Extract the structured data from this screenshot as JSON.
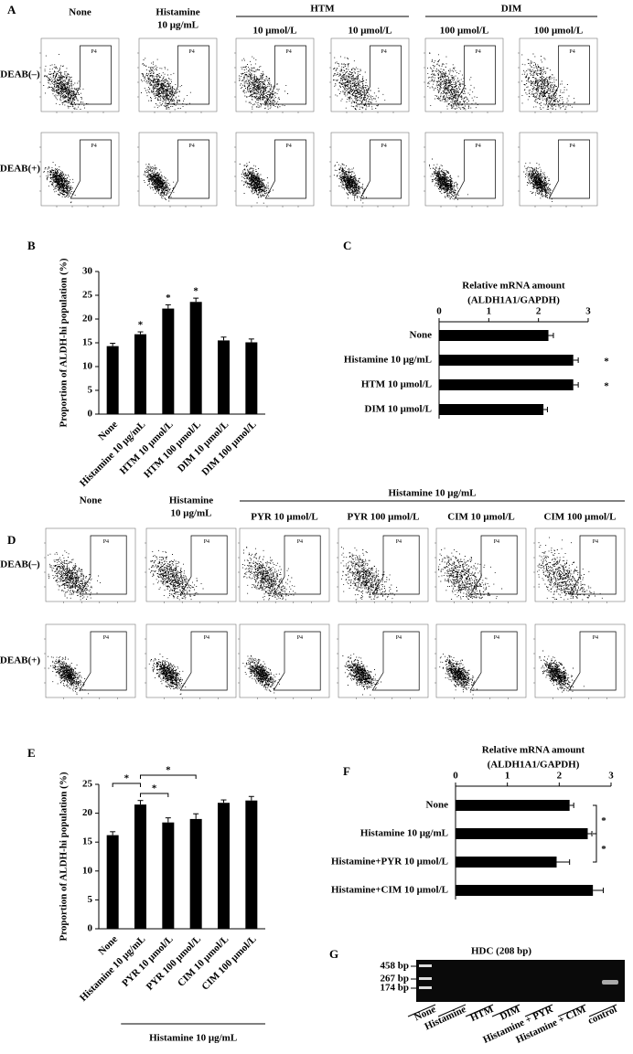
{
  "panel_labels": [
    "A",
    "B",
    "C",
    "D",
    "E",
    "F",
    "G"
  ],
  "flow_a": {
    "columns": [
      [
        "None"
      ],
      [
        "Histamine",
        "10 μg/mL"
      ],
      [
        "10 μmol/L"
      ],
      [
        "10 μmol/L"
      ],
      [
        "100 μmol/L"
      ],
      [
        "100 μmol/L"
      ]
    ],
    "groups": [
      {
        "label": "HTM",
        "span": [
          2,
          3
        ]
      },
      {
        "label": "DIM",
        "span": [
          4,
          5
        ]
      }
    ],
    "rows": [
      "DEAB(–)",
      "DEAB(+)"
    ],
    "gate": "P4"
  },
  "flow_d": {
    "columns": [
      [
        "None"
      ],
      [
        "Histamine",
        "10 μg/mL"
      ],
      [
        "PYR 10 μmol/L"
      ],
      [
        "PYR 100 μmol/L"
      ],
      [
        "CIM 10 μmol/L"
      ],
      [
        "CIM 100 μmol/L"
      ]
    ],
    "groups": [
      {
        "label": "Histamine 10 μg/mL",
        "span": [
          2,
          5
        ]
      }
    ],
    "rows": [
      "DEAB(–)",
      "DEAB(+)"
    ],
    "gate": "P4"
  },
  "chart_data": [
    {
      "type": "bar",
      "ylabel": "Proportion of ALDH-hi population (%)",
      "categories": [
        "None",
        "Histamine 10 μg/mL",
        "HTM 10 μmol/L",
        "HTM 100 μmol/L",
        "DIM 10 μmol/L",
        "DIM 100 μmol/L"
      ],
      "values": [
        14.3,
        16.8,
        22.2,
        23.6,
        15.5,
        15.1
      ],
      "errors": [
        0.6,
        0.5,
        0.8,
        0.8,
        0.7,
        0.7
      ],
      "star_labels": [
        null,
        "*",
        "*",
        "*",
        null,
        null
      ],
      "ylim": [
        0,
        30
      ],
      "yticks": [
        0,
        5,
        10,
        15,
        20,
        25,
        30
      ],
      "color": "#000000"
    },
    {
      "type": "barh",
      "title": "Relative mRNA amount",
      "subtitle": "(ALDH1A1/GAPDH)",
      "categories": [
        "None",
        "Histamine 10 μg/mL",
        "HTM 10 μmol/L",
        "DIM 10 μmol/L"
      ],
      "values": [
        2.2,
        2.7,
        2.7,
        2.1
      ],
      "errors": [
        0.1,
        0.1,
        0.1,
        0.08
      ],
      "star_labels": [
        null,
        "*",
        "*",
        null
      ],
      "xlim": [
        0,
        3
      ],
      "xticks": [
        0,
        1,
        2,
        3
      ],
      "color": "#000000"
    },
    {
      "type": "bar",
      "ylabel": "Proportion of ALDH-hi population (%)",
      "categories": [
        "None",
        "Histamine 10 μg/mL",
        "PYR 10 μmol/L",
        "PYR 100 μmol/L",
        "CIM 10 μmol/L",
        "CIM 100 μmol/L"
      ],
      "values": [
        16.2,
        21.5,
        18.4,
        19.0,
        21.8,
        22.2
      ],
      "errors": [
        0.6,
        0.7,
        0.8,
        0.9,
        0.5,
        0.7
      ],
      "comparisons": [
        {
          "between": [
            0,
            1
          ],
          "label": "*"
        },
        {
          "between": [
            1,
            2
          ],
          "label": "*"
        },
        {
          "between": [
            1,
            3
          ],
          "label": "*"
        }
      ],
      "group_label": "Histamine 10 μg/mL",
      "ylim": [
        0,
        25
      ],
      "yticks": [
        0,
        5,
        10,
        15,
        20,
        25
      ],
      "color": "#000000"
    },
    {
      "type": "barh",
      "title": "Relative mRNA amount",
      "subtitle": "(ALDH1A1/GAPDH)",
      "categories": [
        "None",
        "Histamine 10 μg/mL",
        "Histamine+PYR 10 μmol/L",
        "Histamine+CIM 10 μmol/L"
      ],
      "values": [
        2.2,
        2.55,
        1.95,
        2.65
      ],
      "errors": [
        0.08,
        0.08,
        0.25,
        0.2
      ],
      "comparisons": [
        {
          "between": [
            0,
            1
          ],
          "label": "*"
        },
        {
          "between": [
            1,
            2
          ],
          "label": "*"
        }
      ],
      "xlim": [
        0,
        3
      ],
      "xticks": [
        0,
        1,
        2,
        3
      ],
      "color": "#000000"
    }
  ],
  "gel": {
    "title": "HDC (208 bp)",
    "markers": [
      "458 bp",
      "267 bp",
      "174 bp"
    ],
    "lanes": [
      "None",
      "Histamine",
      "HTM",
      "DIM",
      "Histamine + PYR",
      "Histamine + CIM",
      "control"
    ]
  }
}
